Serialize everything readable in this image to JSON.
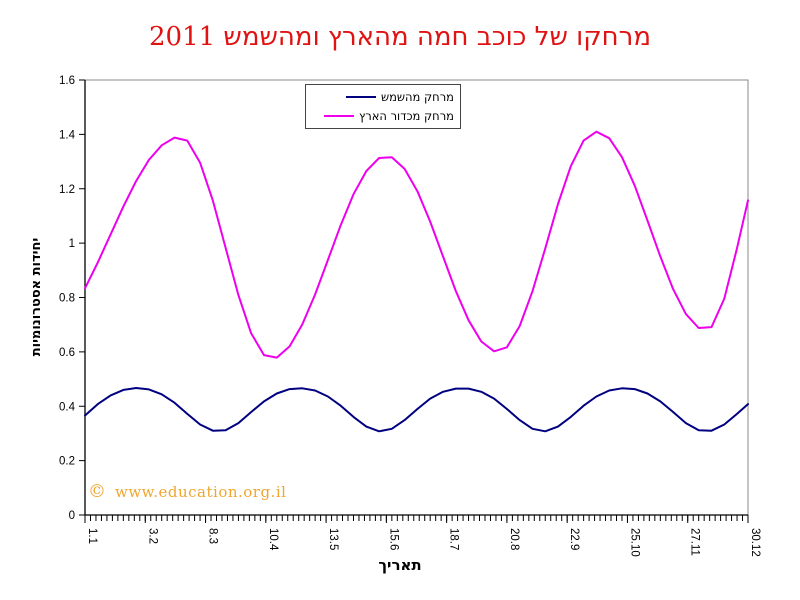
{
  "title": {
    "text": "מרחקו של כוכב חמה מהארץ ומהשמש 2011",
    "color": "#e01212"
  },
  "watermark": {
    "symbol": "©",
    "text": "www.education.org.il",
    "color": "#f0a62e"
  },
  "legend": {
    "items": [
      {
        "label": "מרחק מהשמש",
        "color": "#000080"
      },
      {
        "label": "מרחק מכדור הארץ",
        "color": "#ee00ee"
      }
    ]
  },
  "chart_data": {
    "type": "line",
    "title": "מרחקו של כוכב חמה מהארץ ומהשמש 2011",
    "xlabel": "תאריך",
    "ylabel": "יחידות אסטרונומיות",
    "ylim": [
      0,
      1.6
    ],
    "y_tick_step": 0.2,
    "y_tick_labels": [
      "0",
      "0.2",
      "0.4",
      "0.6",
      "0.8",
      "1",
      "1.2",
      "1.4",
      "1.6"
    ],
    "x_total_days": 363,
    "x_tick_labels": [
      "1.1",
      "3.2",
      "8.3",
      "10.4",
      "13.5",
      "15.6",
      "18.7",
      "20.8",
      "22.9",
      "25.10",
      "27.11",
      "30.12"
    ],
    "x_tick_days": [
      0,
      33,
      66,
      99,
      132,
      165,
      198,
      231,
      264,
      297,
      330,
      363
    ],
    "x_minor_tick_step_days": 3,
    "grid": false,
    "legend_position": "top-center-inside",
    "x_unit": "days since 1.1.2011",
    "x": [
      0,
      7,
      14,
      21,
      28,
      35,
      42,
      49,
      56,
      63,
      70,
      77,
      84,
      91,
      98,
      105,
      112,
      119,
      126,
      133,
      140,
      147,
      154,
      161,
      168,
      175,
      182,
      189,
      196,
      203,
      210,
      217,
      224,
      231,
      238,
      245,
      252,
      259,
      266,
      273,
      280,
      287,
      294,
      301,
      308,
      315,
      322,
      329,
      336,
      343,
      350,
      357,
      363
    ],
    "series": [
      {
        "id": "sun",
        "name": "מרחק מהשמש",
        "color": "#000080",
        "values": [
          0.366,
          0.408,
          0.44,
          0.46,
          0.467,
          0.462,
          0.444,
          0.413,
          0.372,
          0.333,
          0.31,
          0.312,
          0.338,
          0.379,
          0.418,
          0.447,
          0.463,
          0.466,
          0.458,
          0.436,
          0.402,
          0.361,
          0.325,
          0.308,
          0.317,
          0.349,
          0.39,
          0.428,
          0.453,
          0.465,
          0.465,
          0.453,
          0.428,
          0.39,
          0.349,
          0.317,
          0.308,
          0.325,
          0.361,
          0.402,
          0.436,
          0.458,
          0.466,
          0.463,
          0.447,
          0.418,
          0.379,
          0.338,
          0.312,
          0.31,
          0.333,
          0.372,
          0.408
        ]
      },
      {
        "id": "earth",
        "name": "מרחק מכדור הארץ",
        "color": "#ee00ee",
        "values": [
          0.834,
          0.929,
          1.032,
          1.135,
          1.228,
          1.306,
          1.36,
          1.388,
          1.377,
          1.296,
          1.156,
          0.983,
          0.809,
          0.668,
          0.588,
          0.579,
          0.62,
          0.701,
          0.811,
          0.938,
          1.066,
          1.18,
          1.265,
          1.313,
          1.316,
          1.273,
          1.191,
          1.079,
          0.951,
          0.824,
          0.716,
          0.638,
          0.602,
          0.617,
          0.695,
          0.823,
          0.981,
          1.144,
          1.283,
          1.377,
          1.41,
          1.386,
          1.316,
          1.211,
          1.083,
          0.951,
          0.831,
          0.739,
          0.688,
          0.691,
          0.796,
          0.981,
          1.157
        ]
      }
    ]
  }
}
